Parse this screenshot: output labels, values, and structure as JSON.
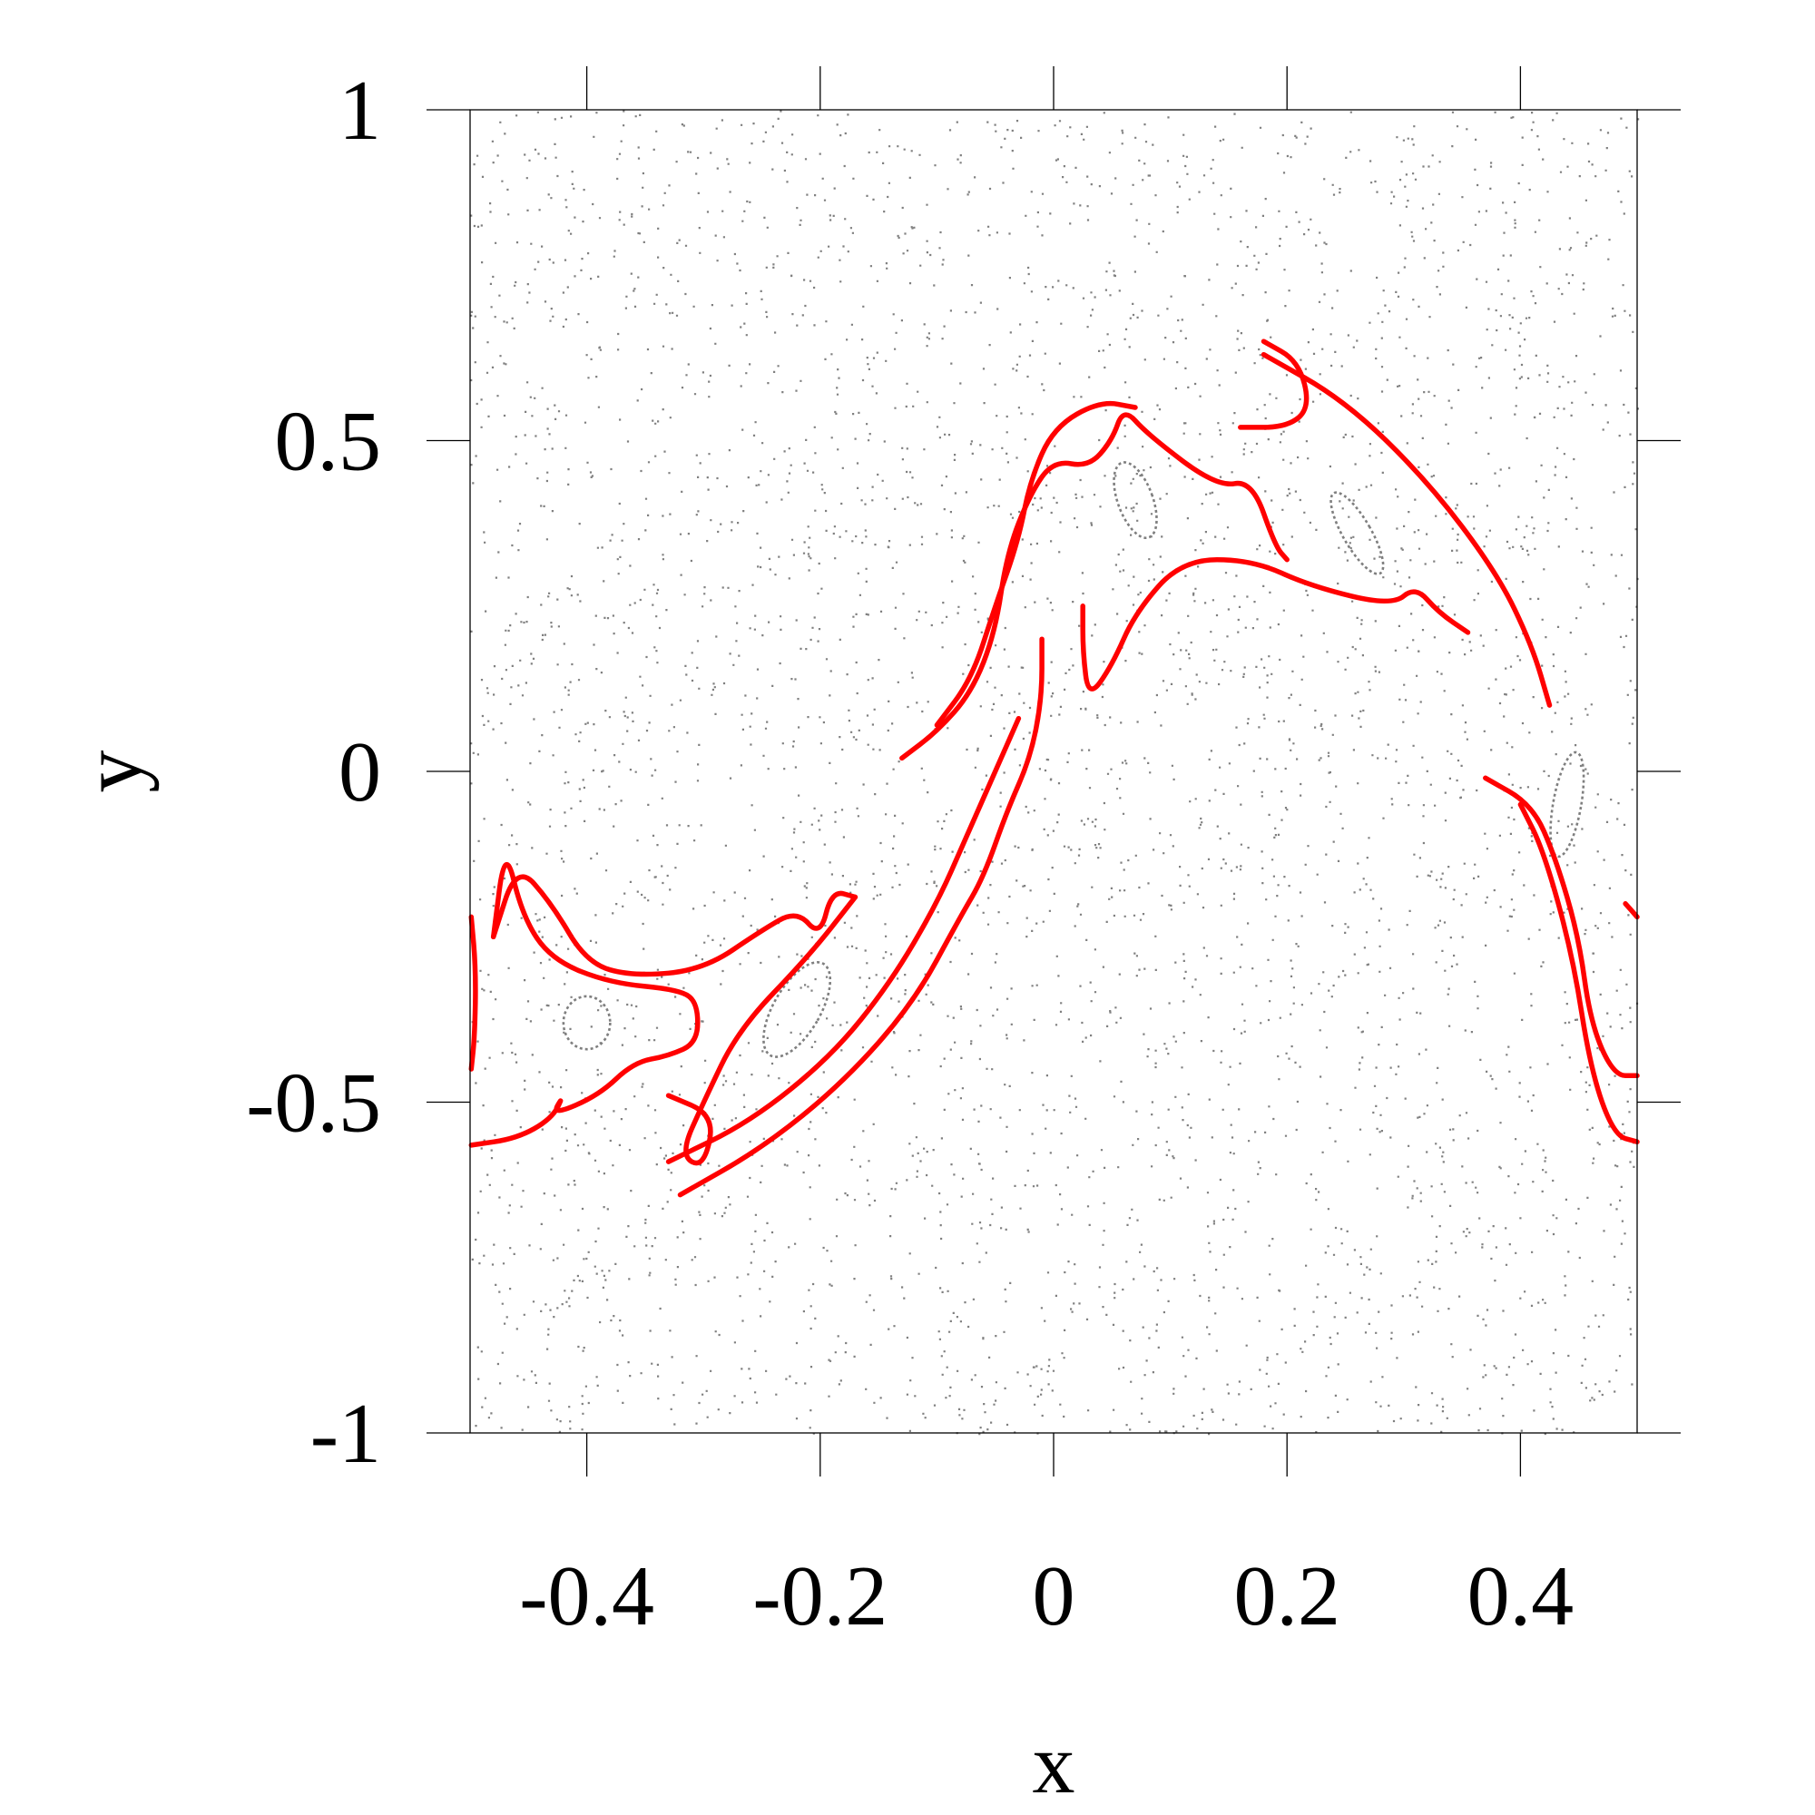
{
  "chart_data": {
    "type": "scatter",
    "title": "",
    "xlabel": "x",
    "ylabel": "y",
    "xlim": [
      -0.5,
      0.5
    ],
    "ylim": [
      -1,
      1
    ],
    "xticks": [
      -0.4,
      -0.2,
      0,
      0.2,
      0.4
    ],
    "xtick_labels": [
      "-0.4",
      "-0.2",
      "0",
      "0.2",
      "0.4"
    ],
    "yticks": [
      -1,
      -0.5,
      0,
      0.5,
      1
    ],
    "ytick_labels": [
      "-1",
      "-0.5",
      "0",
      "0.5",
      "1"
    ],
    "grid": false,
    "legend": "none",
    "colors": {
      "background_orbits": "#808080",
      "highlighted_orbit": "#ff0000"
    },
    "series": [
      {
        "role": "chaotic-sea",
        "color": "#808080",
        "marker": "dot",
        "seed": 7,
        "count": 4200
      },
      {
        "role": "highlighted-invariant-curve",
        "color": "#ff0000",
        "segments": [
          [
            [
              -0.499,
              -0.22
            ],
            [
              -0.495,
              -0.3
            ],
            [
              -0.496,
              -0.4
            ],
            [
              -0.499,
              -0.45
            ]
          ],
          [
            [
              -0.499,
              -0.565
            ],
            [
              -0.46,
              -0.555
            ],
            [
              -0.43,
              -0.525
            ],
            [
              -0.42,
              -0.49
            ],
            [
              -0.43,
              -0.52
            ],
            [
              -0.39,
              -0.49
            ],
            [
              -0.36,
              -0.44
            ],
            [
              -0.33,
              -0.43
            ],
            [
              -0.305,
              -0.41
            ],
            [
              -0.305,
              -0.35
            ],
            [
              -0.32,
              -0.33
            ],
            [
              -0.38,
              -0.32
            ],
            [
              -0.43,
              -0.285
            ],
            [
              -0.455,
              -0.22
            ],
            [
              -0.47,
              -0.11
            ],
            [
              -0.48,
              -0.25
            ]
          ],
          [
            [
              -0.48,
              -0.25
            ],
            [
              -0.46,
              -0.14
            ],
            [
              -0.43,
              -0.2
            ],
            [
              -0.4,
              -0.29
            ],
            [
              -0.36,
              -0.31
            ],
            [
              -0.3,
              -0.3
            ],
            [
              -0.25,
              -0.24
            ],
            [
              -0.22,
              -0.21
            ],
            [
              -0.2,
              -0.25
            ],
            [
              -0.19,
              -0.18
            ],
            [
              -0.17,
              -0.19
            ]
          ],
          [
            [
              -0.17,
              -0.19
            ],
            [
              -0.21,
              -0.28
            ],
            [
              -0.27,
              -0.39
            ],
            [
              -0.3,
              -0.5
            ],
            [
              -0.32,
              -0.58
            ],
            [
              -0.3,
              -0.6
            ],
            [
              -0.29,
              -0.52
            ],
            [
              -0.33,
              -0.49
            ]
          ],
          [
            [
              -0.32,
              -0.64
            ],
            [
              -0.25,
              -0.57
            ],
            [
              -0.18,
              -0.47
            ],
            [
              -0.12,
              -0.35
            ],
            [
              -0.08,
              -0.22
            ],
            [
              -0.06,
              -0.16
            ],
            [
              -0.04,
              -0.06
            ],
            [
              -0.02,
              0.02
            ],
            [
              -0.01,
              0.11
            ],
            [
              -0.01,
              0.2
            ]
          ],
          [
            [
              -0.33,
              -0.59
            ],
            [
              -0.26,
              -0.53
            ],
            [
              -0.19,
              -0.43
            ],
            [
              -0.14,
              -0.32
            ],
            [
              -0.1,
              -0.2
            ],
            [
              -0.075,
              -0.1
            ],
            [
              -0.05,
              0.0
            ],
            [
              -0.03,
              0.08
            ]
          ],
          [
            [
              -0.13,
              0.02
            ],
            [
              -0.1,
              0.06
            ],
            [
              -0.07,
              0.12
            ],
            [
              -0.05,
              0.21
            ],
            [
              -0.04,
              0.33
            ],
            [
              -0.02,
              0.42
            ],
            [
              0.0,
              0.47
            ],
            [
              0.03,
              0.46
            ],
            [
              0.05,
              0.5
            ],
            [
              0.06,
              0.55
            ],
            [
              0.08,
              0.51
            ],
            [
              0.14,
              0.43
            ],
            [
              0.17,
              0.44
            ],
            [
              0.19,
              0.34
            ],
            [
              0.2,
              0.32
            ]
          ],
          [
            [
              -0.1,
              0.07
            ],
            [
              -0.07,
              0.14
            ],
            [
              -0.05,
              0.25
            ],
            [
              -0.03,
              0.35
            ],
            [
              -0.02,
              0.44
            ],
            [
              0.0,
              0.52
            ],
            [
              0.04,
              0.56
            ],
            [
              0.07,
              0.55
            ]
          ],
          [
            [
              0.025,
              0.25
            ],
            [
              0.025,
              0.18
            ],
            [
              0.03,
              0.11
            ],
            [
              0.05,
              0.16
            ],
            [
              0.07,
              0.24
            ],
            [
              0.11,
              0.32
            ],
            [
              0.17,
              0.32
            ],
            [
              0.22,
              0.28
            ],
            [
              0.29,
              0.25
            ],
            [
              0.31,
              0.28
            ],
            [
              0.33,
              0.24
            ],
            [
              0.355,
              0.21
            ]
          ],
          [
            [
              0.18,
              0.65
            ],
            [
              0.21,
              0.62
            ],
            [
              0.22,
              0.55
            ],
            [
              0.2,
              0.52
            ],
            [
              0.16,
              0.52
            ]
          ],
          [
            [
              0.18,
              0.63
            ],
            [
              0.25,
              0.56
            ],
            [
              0.32,
              0.44
            ],
            [
              0.38,
              0.3
            ],
            [
              0.41,
              0.19
            ],
            [
              0.425,
              0.1
            ]
          ],
          [
            [
              0.37,
              -0.01
            ],
            [
              0.41,
              -0.05
            ],
            [
              0.43,
              -0.13
            ],
            [
              0.45,
              -0.25
            ],
            [
              0.46,
              -0.38
            ],
            [
              0.48,
              -0.46
            ],
            [
              0.5,
              -0.46
            ]
          ],
          [
            [
              0.4,
              -0.05
            ],
            [
              0.42,
              -0.12
            ],
            [
              0.445,
              -0.28
            ],
            [
              0.46,
              -0.45
            ],
            [
              0.48,
              -0.55
            ],
            [
              0.5,
              -0.56
            ]
          ],
          [
            [
              0.49,
              -0.2
            ],
            [
              0.5,
              -0.22
            ]
          ]
        ]
      },
      {
        "role": "regular-islands",
        "color": "#7f7f7f",
        "ellipses": [
          {
            "cx": -0.22,
            "cy": -0.36,
            "rx": 0.02,
            "ry": 0.08,
            "rot": 30
          },
          {
            "cx": -0.4,
            "cy": -0.38,
            "rx": 0.02,
            "ry": 0.04,
            "rot": 0
          },
          {
            "cx": 0.07,
            "cy": 0.41,
            "rx": 0.015,
            "ry": 0.06,
            "rot": -20
          },
          {
            "cx": 0.44,
            "cy": -0.05,
            "rx": 0.012,
            "ry": 0.08,
            "rot": 10
          },
          {
            "cx": 0.26,
            "cy": 0.36,
            "rx": 0.012,
            "ry": 0.07,
            "rot": -30
          }
        ]
      }
    ]
  }
}
